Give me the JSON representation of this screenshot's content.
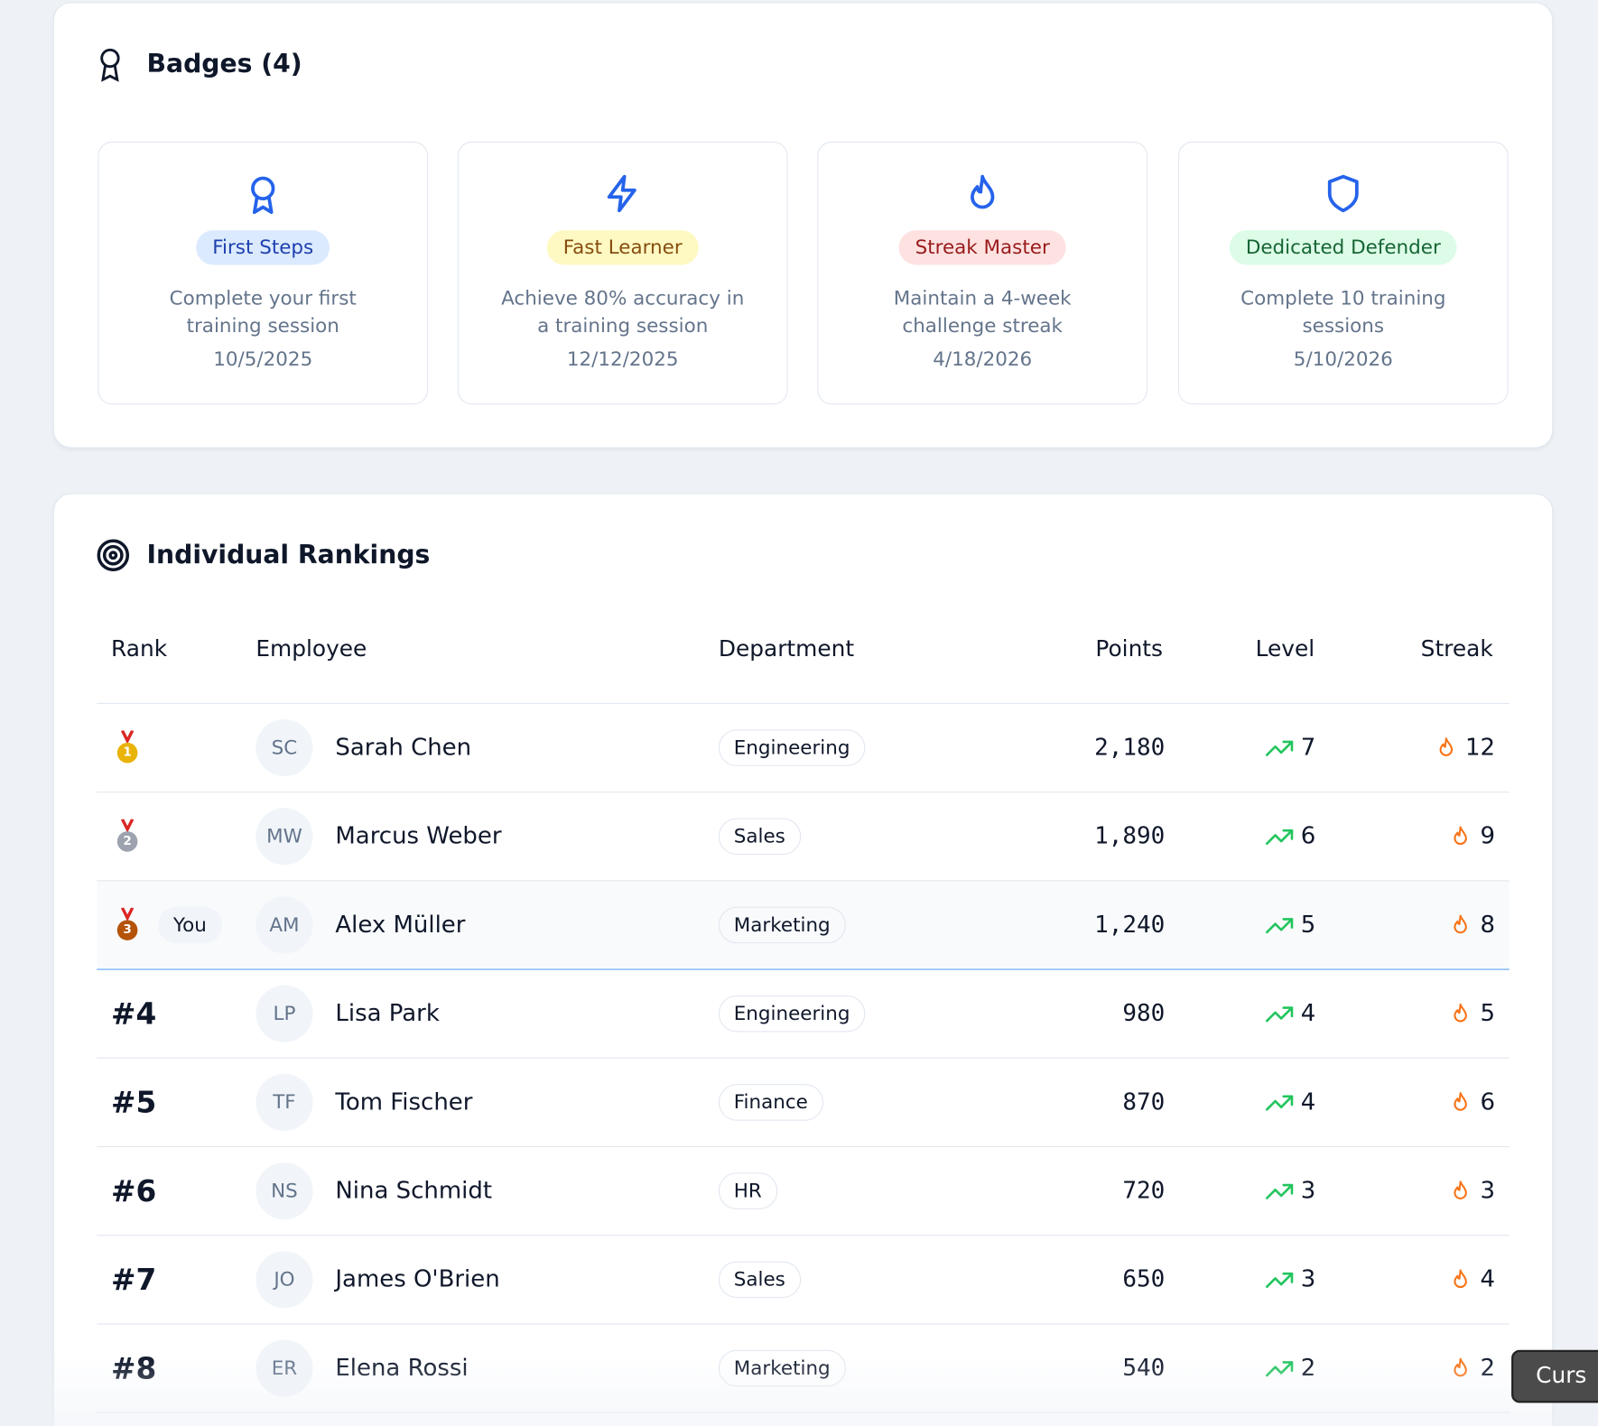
{
  "badges": {
    "title": "Badges (4)",
    "items": [
      {
        "name": "First Steps",
        "description": "Complete your first training session",
        "date": "10/5/2025"
      },
      {
        "name": "Fast Learner",
        "description": "Achieve 80% accuracy in a training session",
        "date": "12/12/2025"
      },
      {
        "name": "Streak Master",
        "description": "Maintain a 4-week challenge streak",
        "date": "4/18/2026"
      },
      {
        "name": "Dedicated Defender",
        "description": "Complete 10 training sessions",
        "date": "5/10/2026"
      }
    ]
  },
  "rankings": {
    "title": "Individual Rankings",
    "headers": [
      "Rank",
      "Employee",
      "Department",
      "Points",
      "Level",
      "Streak"
    ],
    "rows": [
      {
        "rank": "1",
        "initials": "SC",
        "name": "Sarah Chen",
        "department": "Engineering",
        "points": "2,180",
        "level": 7,
        "streak": 12
      },
      {
        "rank": "2",
        "initials": "MW",
        "name": "Marcus Weber",
        "department": "Sales",
        "points": "1,890",
        "level": 6,
        "streak": 9
      },
      {
        "rank": "3",
        "you": "You",
        "initials": "AM",
        "name": "Alex Müller",
        "department": "Marketing",
        "points": "1,240",
        "level": 5,
        "streak": 8
      },
      {
        "rank": "#4",
        "initials": "LP",
        "name": "Lisa Park",
        "department": "Engineering",
        "points": "980",
        "level": 4,
        "streak": 5
      },
      {
        "rank": "#5",
        "initials": "TF",
        "name": "Tom Fischer",
        "department": "Finance",
        "points": "870",
        "level": 4,
        "streak": 6
      },
      {
        "rank": "#6",
        "initials": "NS",
        "name": "Nina Schmidt",
        "department": "HR",
        "points": "720",
        "level": 3,
        "streak": 3
      },
      {
        "rank": "#7",
        "initials": "JO",
        "name": "James O'Brien",
        "department": "Sales",
        "points": "650",
        "level": 3,
        "streak": 4
      },
      {
        "rank": "#8",
        "initials": "ER",
        "name": "Elena Rossi",
        "department": "Marketing",
        "points": "540",
        "level": 2,
        "streak": 2
      }
    ]
  },
  "tooltip": "Curs"
}
